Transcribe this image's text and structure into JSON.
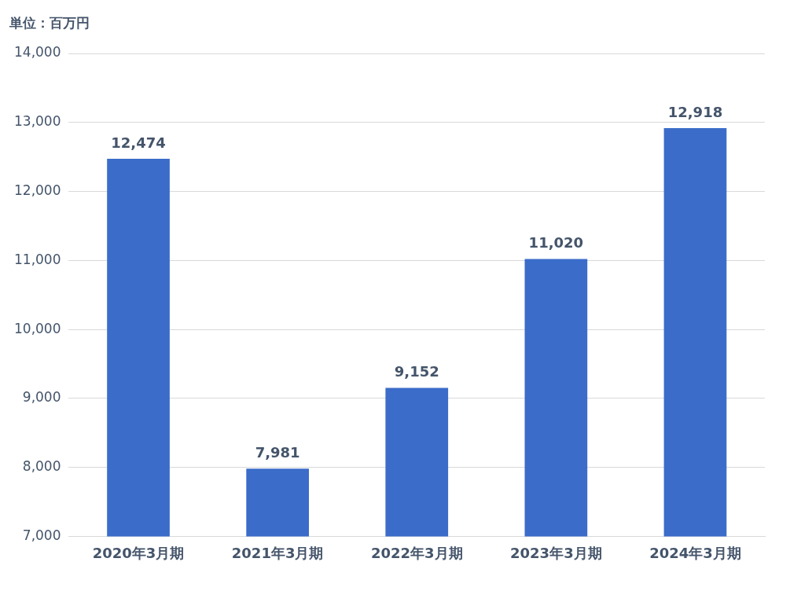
{
  "chart_data": {
    "type": "bar",
    "ylabel": "単位：百万円",
    "categories": [
      "2020年3月期",
      "2021年3月期",
      "2022年3月期",
      "2023年3月期",
      "2024年3月期"
    ],
    "values": [
      12474,
      7981,
      9152,
      11020,
      12918
    ],
    "value_labels": [
      "12,474",
      "7,981",
      "9,152",
      "11,020",
      "12,918"
    ],
    "color": "#3b6cc9",
    "ylim": [
      7000,
      14000
    ],
    "yticks": [
      {
        "value": 7000,
        "label": "7,000"
      },
      {
        "value": 8000,
        "label": "8,000"
      },
      {
        "value": 9000,
        "label": "9,000"
      },
      {
        "value": 10000,
        "label": "10,000"
      },
      {
        "value": 11000,
        "label": "11,000"
      },
      {
        "value": 12000,
        "label": "12,000"
      },
      {
        "value": 13000,
        "label": "13,000"
      },
      {
        "value": 14000,
        "label": "14,000"
      }
    ],
    "grid": "y",
    "legend": false
  }
}
